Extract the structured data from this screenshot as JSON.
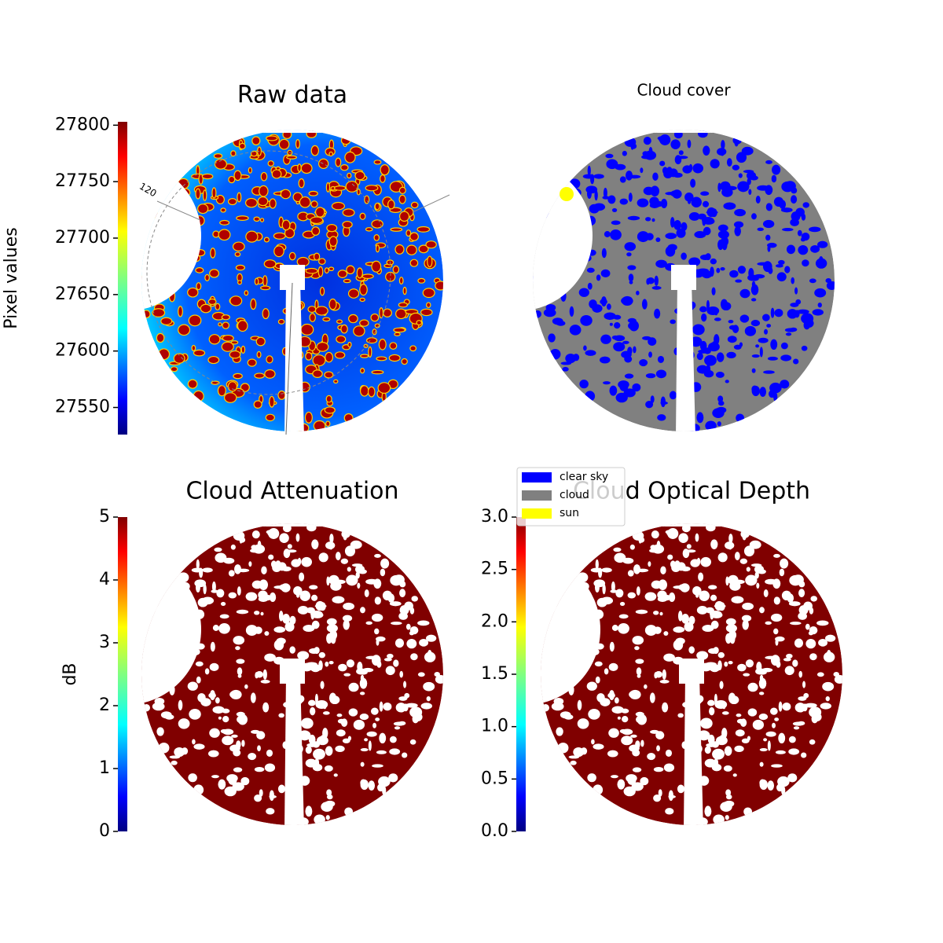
{
  "chart_data": [
    {
      "type": "heatmap",
      "title": "Raw data",
      "colorbar_label": "Pixel values",
      "colormap": "jet",
      "ylim": [
        27526,
        27803
      ],
      "yticks": [
        27550,
        27600,
        27650,
        27700,
        27750,
        27800
      ],
      "annotations": [
        "120"
      ]
    },
    {
      "type": "categorical",
      "title": "Cloud cover",
      "legend": [
        {
          "name": "clear sky",
          "color": "#0000ff"
        },
        {
          "name": "cloud",
          "color": "#808080"
        },
        {
          "name": "sun",
          "color": "#ffff00"
        }
      ]
    },
    {
      "type": "heatmap",
      "title": "Cloud Attenuation",
      "colorbar_label": "dB",
      "colormap": "jet",
      "ylim": [
        0,
        5
      ],
      "yticks": [
        0,
        1,
        2,
        3,
        4,
        5
      ]
    },
    {
      "type": "heatmap",
      "title": "Cloud Optical Depth",
      "colormap": "jet",
      "ylim": [
        0,
        3
      ],
      "yticks": [
        {
          "value": 0,
          "label": "0.0"
        },
        0.5,
        {
          "value": 1,
          "label": "1.0"
        },
        1.5,
        {
          "value": 2,
          "label": "2.0"
        },
        2.5,
        {
          "value": 3,
          "label": "3.0"
        }
      ]
    }
  ]
}
